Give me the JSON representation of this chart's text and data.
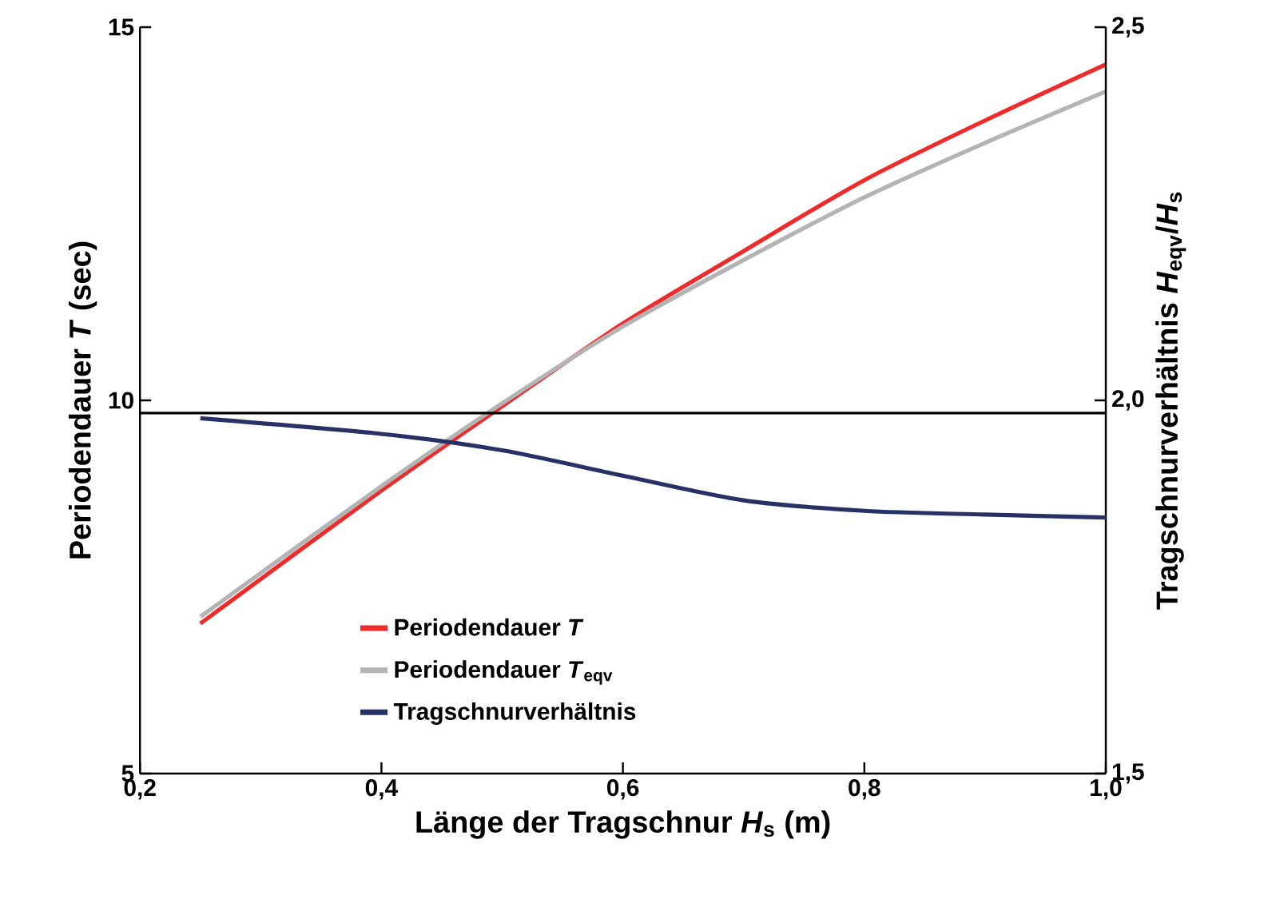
{
  "chart_data": {
    "type": "line",
    "xlabel": "Länge der Tragschnur *H*$_{s}$ (m)",
    "ylabel": "Periodendauer *T* (sec)",
    "y2label": "Tragschnurverhältnis  *H*$_{eqv}$/*H*$_{s}$",
    "xlim": [
      0.2,
      1.0
    ],
    "xticks": [
      {
        "value": 0.2,
        "label": "0,2"
      },
      {
        "value": 0.4,
        "label": "0,4"
      },
      {
        "value": 0.6,
        "label": "0,6"
      },
      {
        "value": 0.8,
        "label": "0,8"
      },
      {
        "value": 1.0,
        "label": "1,0"
      }
    ],
    "ylim": [
      5,
      15
    ],
    "yticks": [
      5,
      10,
      15
    ],
    "y2lim": [
      1.5,
      2.5
    ],
    "y2ticks": [
      {
        "value": 1.5,
        "label": "1,5"
      },
      {
        "value": 2.0,
        "label": "2,0"
      },
      {
        "value": 2.5,
        "label": "2,5"
      }
    ],
    "x": [
      0.25,
      0.4,
      0.5,
      0.6,
      0.7,
      0.8,
      0.9,
      1.0
    ],
    "series": [
      {
        "name": "Periodendauer *T*",
        "color": "#ee2b2b",
        "values": [
          7.01,
          8.79,
          9.92,
          11.03,
          12.0,
          12.95,
          13.75,
          14.5
        ]
      },
      {
        "name": "Periodendauer *T*$_{eqv}$",
        "color": "#b4b4b4",
        "values": [
          7.1,
          8.85,
          9.96,
          10.99,
          11.88,
          12.72,
          13.45,
          14.14
        ]
      },
      {
        "name": "Tragschnurverhältnis",
        "color": "#263166",
        "axis": "y2",
        "values": [
          1.976,
          1.955,
          1.933,
          1.899,
          1.866,
          1.852,
          1.847,
          1.843
        ]
      }
    ],
    "ref_lines": [
      {
        "axis": "y2",
        "value": 1.983,
        "color": "#000000"
      }
    ],
    "legend": "bottom",
    "grid": false,
    "marker": "none",
    "line_style": "solid"
  }
}
